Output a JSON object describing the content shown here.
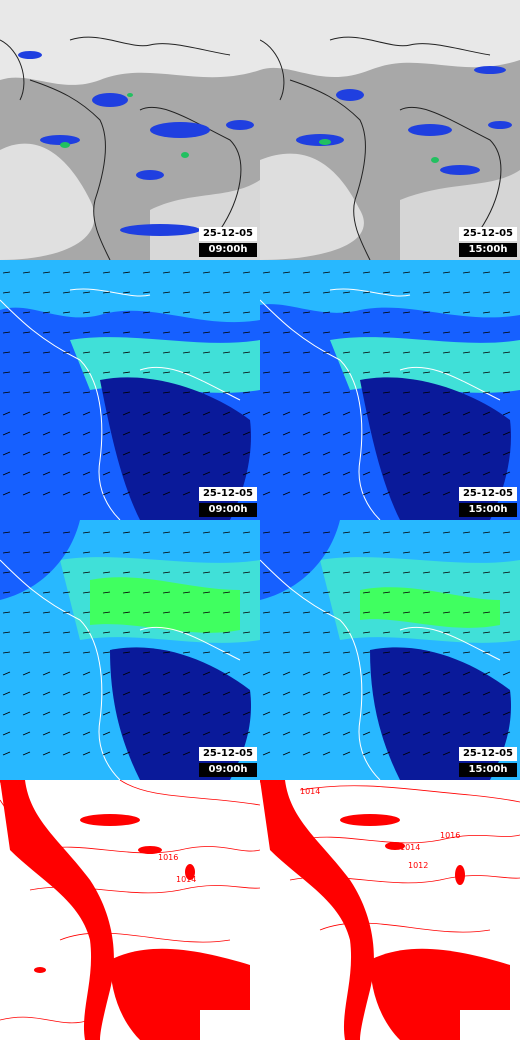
{
  "rows": [
    {
      "kind": "satellite",
      "panels": [
        {
          "date": "25-12-05",
          "time": "09:00h"
        },
        {
          "date": "25-12-05",
          "time": "15:00h"
        }
      ]
    },
    {
      "kind": "wind",
      "panels": [
        {
          "date": "25-12-05",
          "time": "09:00h"
        },
        {
          "date": "25-12-05",
          "time": "15:00h"
        }
      ]
    },
    {
      "kind": "wind-upper",
      "panels": [
        {
          "date": "25-12-05",
          "time": "09:00h"
        },
        {
          "date": "25-12-05",
          "time": "15:00h"
        }
      ]
    },
    {
      "kind": "pressure",
      "panels": [
        {
          "isobars": [
            "1016",
            "1014"
          ]
        },
        {
          "isobars": [
            "1014",
            "1016",
            "1014",
            "1012"
          ]
        }
      ]
    }
  ],
  "colors": {
    "cloud_gray": "#b8b8b8",
    "precip_blue": "#1f3fe0",
    "precip_green": "#22c060",
    "wind_dark": "#0a1a9a",
    "wind_mid": "#1660ff",
    "wind_light": "#28b8ff",
    "wind_cyan": "#40e0d8",
    "wind_green": "#40ff60",
    "isobar_red": "#ff0000"
  }
}
